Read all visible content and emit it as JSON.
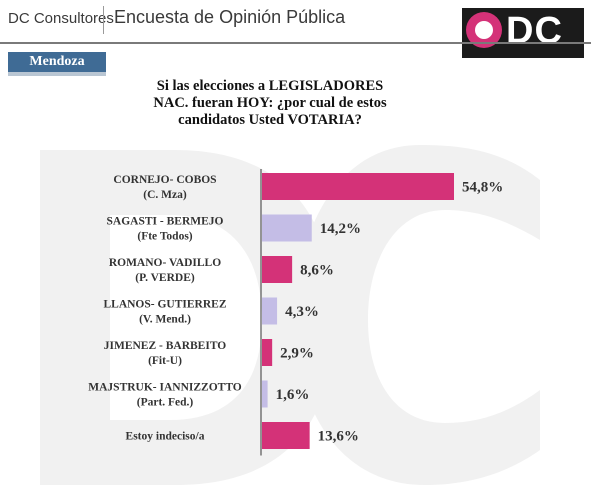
{
  "header": {
    "brand": "DC Consultores",
    "survey_title": "Encuesta de Opinión Pública",
    "logo_text": "DC"
  },
  "region_badge": "Mendoza",
  "colors": {
    "bar_primary": "#d43278",
    "bar_secondary": "#c4bde6",
    "badge": "#3f6b95"
  },
  "chart_data": {
    "type": "bar",
    "orientation": "horizontal",
    "title": "Si las elecciones a LEGISLADORES NAC. fueran HOY: ¿por cual de estos candidatos Usted VOTARIA?",
    "title_lines": [
      "Si las elecciones a LEGISLADORES",
      "NAC. fueran HOY: ¿por cual de estos",
      "candidatos Usted VOTARIA?"
    ],
    "categories": [
      {
        "name": "CORNEJO- COBOS",
        "party": "(C. Mza)",
        "value": 54.8,
        "label": "54,8%",
        "color": "#d43278"
      },
      {
        "name": "SAGASTI - BERMEJO",
        "party": "(Fte Todos)",
        "value": 14.2,
        "label": "14,2%",
        "color": "#c4bde6"
      },
      {
        "name": "ROMANO-  VADILLO",
        "party": "(P. VERDE)",
        "value": 8.6,
        "label": "8,6%",
        "color": "#d43278"
      },
      {
        "name": "LLANOS- GUTIERREZ",
        "party": "(V. Mend.)",
        "value": 4.3,
        "label": "4,3%",
        "color": "#c4bde6"
      },
      {
        "name": "JIMENEZ - BARBEITO",
        "party": "(Fit-U)",
        "value": 2.9,
        "label": "2,9%",
        "color": "#d43278"
      },
      {
        "name": "MAJSTRUK-  IANNIZZOTTO",
        "party": "(Part. Fed.)",
        "value": 1.6,
        "label": "1,6%",
        "color": "#c4bde6"
      },
      {
        "name": "Estoy indeciso/a",
        "party": "",
        "value": 13.6,
        "label": "13,6%",
        "color": "#d43278"
      }
    ],
    "xlim": [
      0,
      54.8
    ],
    "grid": false,
    "legend": "none"
  }
}
